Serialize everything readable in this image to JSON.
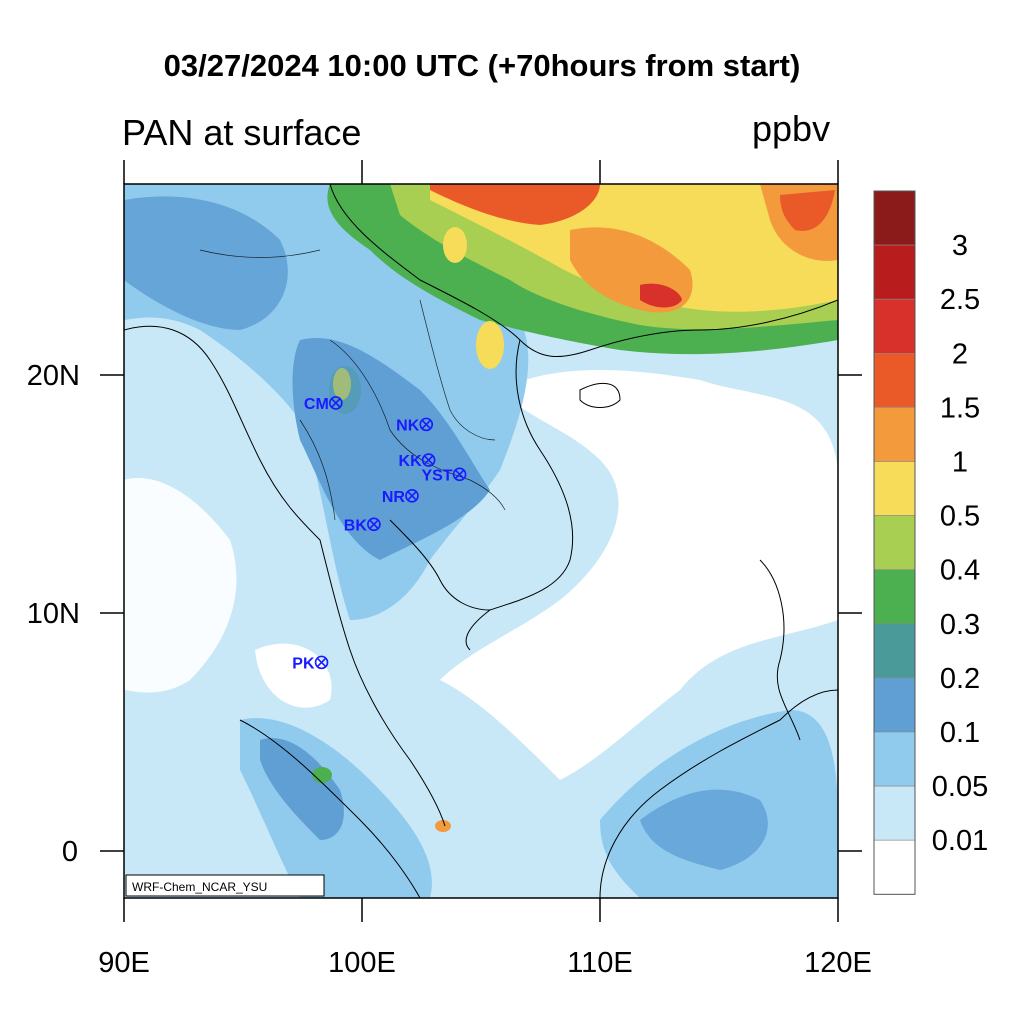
{
  "map": {
    "title": "03/27/2024 10:00 UTC (+70hours from start)",
    "variable": "PAN at surface",
    "units": "ppbv",
    "credit": "WRF-Chem_NCAR_YSU",
    "lon_labels": [
      "90E",
      "100E",
      "110E",
      "120E"
    ],
    "lat_labels": [
      "20N",
      "10N",
      "0"
    ],
    "lon_range": [
      90,
      120
    ],
    "lat_range": [
      -2,
      28
    ]
  },
  "colorbar": {
    "labels": [
      "3",
      "2.5",
      "2",
      "1.5",
      "1",
      "0.5",
      "0.4",
      "0.3",
      "0.2",
      "0.1",
      "0.05",
      "0.01"
    ],
    "colors": [
      "#8b1a1a",
      "#b81c1c",
      "#d8302a",
      "#ea5a28",
      "#f39a3c",
      "#f7dc5a",
      "#a8cf52",
      "#4caf50",
      "#4a9a9a",
      "#5f9fd4",
      "#90cbee",
      "#c8e8f8",
      "#ffffff"
    ]
  },
  "stations": [
    {
      "code": "CM",
      "lon": 98.9,
      "lat": 18.8
    },
    {
      "code": "NK",
      "lon": 102.7,
      "lat": 17.9
    },
    {
      "code": "KK",
      "lon": 102.8,
      "lat": 16.4
    },
    {
      "code": "YST",
      "lon": 104.1,
      "lat": 15.8
    },
    {
      "code": "NR",
      "lon": 102.1,
      "lat": 14.9
    },
    {
      "code": "BK",
      "lon": 100.5,
      "lat": 13.7
    },
    {
      "code": "PK",
      "lon": 98.3,
      "lat": 7.9
    }
  ]
}
